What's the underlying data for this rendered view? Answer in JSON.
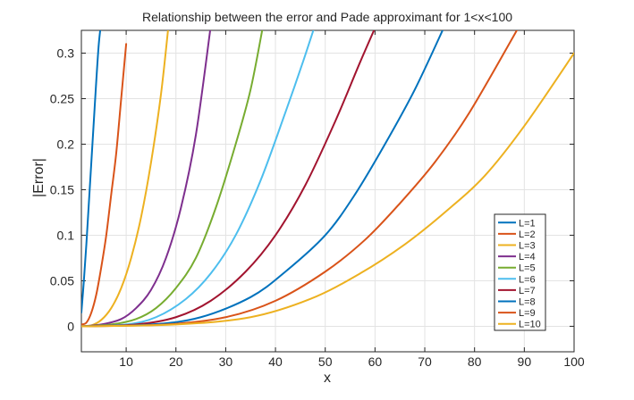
{
  "chart_data": {
    "type": "line",
    "title": "Relationship between the error and Pade approximant for 1<x<100",
    "xlabel": "x",
    "ylabel": "|Error|",
    "xlim": [
      1,
      100
    ],
    "ylim": [
      -0.028,
      0.325
    ],
    "grid": true,
    "legend_position": "bottom-right",
    "x_ticks": [
      10,
      20,
      30,
      40,
      50,
      60,
      70,
      80,
      90,
      100
    ],
    "x_tick_labels": [
      "10",
      "20",
      "30",
      "40",
      "50",
      "60",
      "70",
      "80",
      "90",
      "100"
    ],
    "y_ticks": [
      0,
      0.05,
      0.1,
      0.15,
      0.2,
      0.25,
      0.3
    ],
    "y_tick_labels": [
      "0",
      "0.05",
      "0.1",
      "0.15",
      "0.2",
      "0.25",
      "0.3"
    ],
    "series": [
      {
        "name": "L=1",
        "color": "#0072BD",
        "x": [
          1,
          1.5,
          2,
          2.5,
          3,
          3.5,
          4,
          4.5,
          5
        ],
        "y": [
          0.015,
          0.05,
          0.09,
          0.135,
          0.18,
          0.225,
          0.27,
          0.31,
          0.335
        ]
      },
      {
        "name": "L=2",
        "color": "#D95319",
        "x": [
          1,
          2,
          3,
          4,
          5,
          6,
          7,
          8,
          9,
          10
        ],
        "y": [
          0.002,
          0.004,
          0.015,
          0.035,
          0.065,
          0.1,
          0.145,
          0.19,
          0.25,
          0.31
        ]
      },
      {
        "name": "L=3",
        "color": "#EDB120",
        "x": [
          1,
          3,
          5,
          7,
          9,
          11,
          13,
          15,
          17,
          18.5
        ],
        "y": [
          0,
          0.001,
          0.007,
          0.02,
          0.042,
          0.075,
          0.12,
          0.18,
          0.255,
          0.33
        ]
      },
      {
        "name": "L=4",
        "color": "#7E2F8E",
        "x": [
          1,
          5,
          9,
          12,
          15,
          18,
          21,
          24,
          27
        ],
        "y": [
          0,
          0.002,
          0.008,
          0.02,
          0.04,
          0.075,
          0.13,
          0.21,
          0.33
        ]
      },
      {
        "name": "L=5",
        "color": "#77AC30",
        "x": [
          1,
          7,
          12,
          16,
          20,
          24,
          28,
          32,
          35,
          37.5
        ],
        "y": [
          0,
          0.002,
          0.008,
          0.02,
          0.042,
          0.075,
          0.13,
          0.2,
          0.26,
          0.33
        ]
      },
      {
        "name": "L=6",
        "color": "#4DBEEE",
        "x": [
          1,
          10,
          16,
          22,
          27,
          32,
          37,
          42,
          45.5,
          48.5
        ],
        "y": [
          0,
          0.002,
          0.01,
          0.03,
          0.058,
          0.1,
          0.16,
          0.235,
          0.29,
          0.34
        ]
      },
      {
        "name": "L=7",
        "color": "#A2142F",
        "x": [
          1,
          12,
          20,
          27,
          34,
          40,
          46,
          52,
          57,
          61
        ],
        "y": [
          0,
          0.002,
          0.01,
          0.028,
          0.06,
          0.1,
          0.155,
          0.225,
          0.29,
          0.34
        ]
      },
      {
        "name": "L=8",
        "color": "#0072BD",
        "x": [
          1,
          15,
          25,
          35,
          42,
          50,
          56,
          62,
          68,
          74
        ],
        "y": [
          0,
          0.002,
          0.01,
          0.032,
          0.06,
          0.1,
          0.145,
          0.2,
          0.26,
          0.33
        ]
      },
      {
        "name": "L=9",
        "color": "#D95319",
        "x": [
          1,
          18,
          30,
          40,
          50,
          58,
          65,
          72,
          79,
          88.5
        ],
        "y": [
          0,
          0.002,
          0.01,
          0.028,
          0.06,
          0.095,
          0.135,
          0.18,
          0.235,
          0.325
        ]
      },
      {
        "name": "L=10",
        "color": "#EDB120",
        "x": [
          1,
          20,
          35,
          47,
          57,
          66,
          74,
          82,
          90,
          100
        ],
        "y": [
          0,
          0.002,
          0.01,
          0.03,
          0.058,
          0.09,
          0.125,
          0.165,
          0.22,
          0.3
        ]
      }
    ]
  }
}
